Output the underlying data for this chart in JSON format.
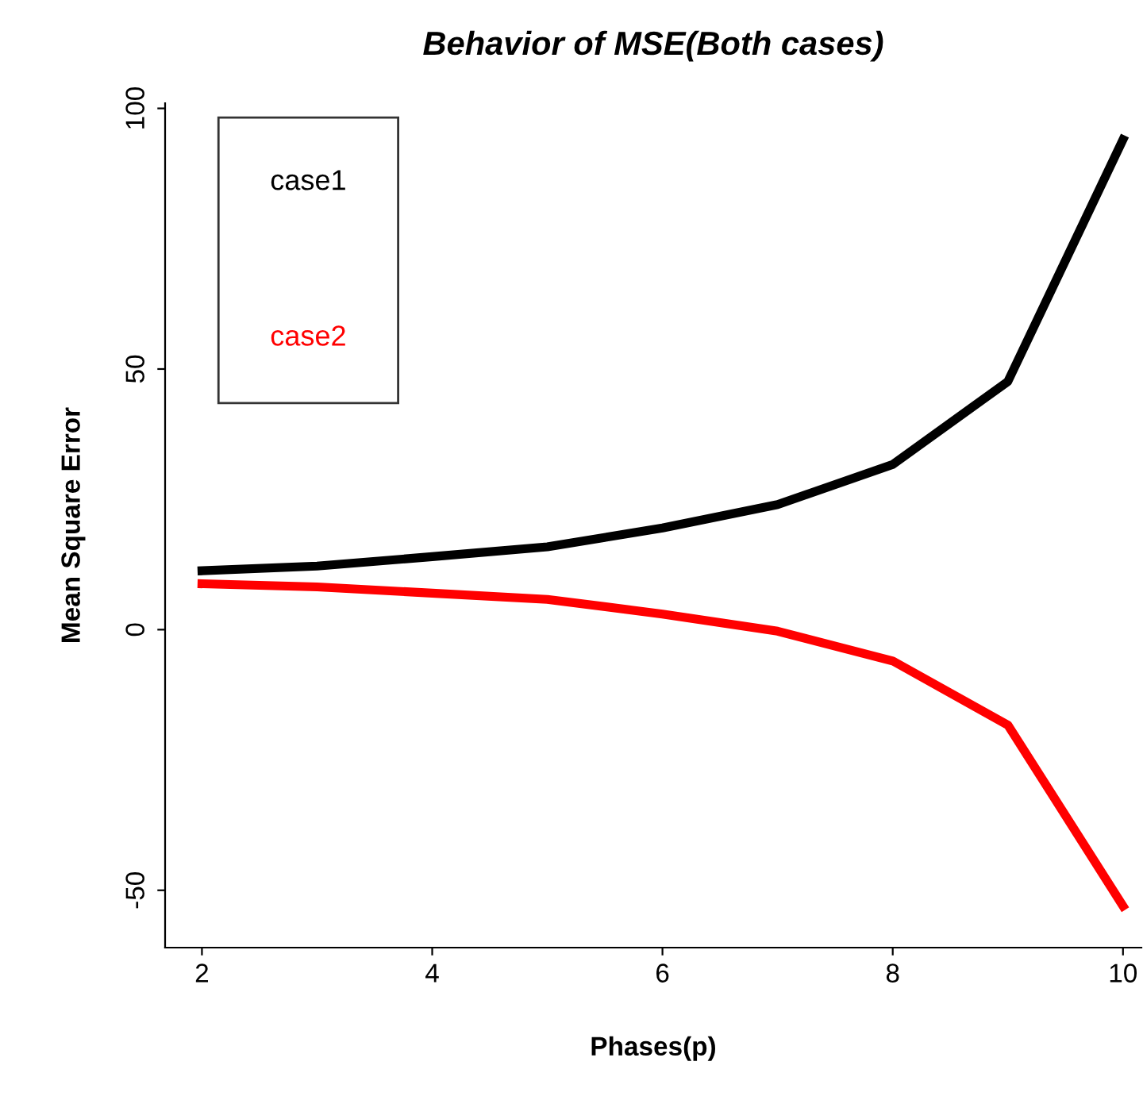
{
  "chart_data": {
    "type": "line",
    "title": "Behavior of MSE(Both cases)",
    "xlabel": "Phases(p)",
    "ylabel": "Mean Square Error",
    "x": [
      2,
      3,
      4,
      5,
      6,
      7,
      8,
      9,
      10
    ],
    "series": [
      {
        "name": "case1",
        "color": "#000000",
        "values": [
          11.3,
          12.2,
          14,
          15.9,
          19.5,
          24,
          31.7,
          47.6,
          94
        ]
      },
      {
        "name": "case2",
        "color": "#ff0000",
        "values": [
          8.8,
          8.2,
          7,
          5.8,
          3,
          -0.3,
          -6,
          -18.3,
          -53
        ]
      }
    ],
    "xlim": [
      1.68,
      10.16
    ],
    "ylim": [
      -61,
      101
    ],
    "xticks": [
      2,
      4,
      6,
      8,
      10
    ],
    "yticks": [
      -50,
      0,
      50,
      100
    ],
    "legend": "top left",
    "grid": false,
    "line_style": "solid",
    "marker": "none"
  }
}
